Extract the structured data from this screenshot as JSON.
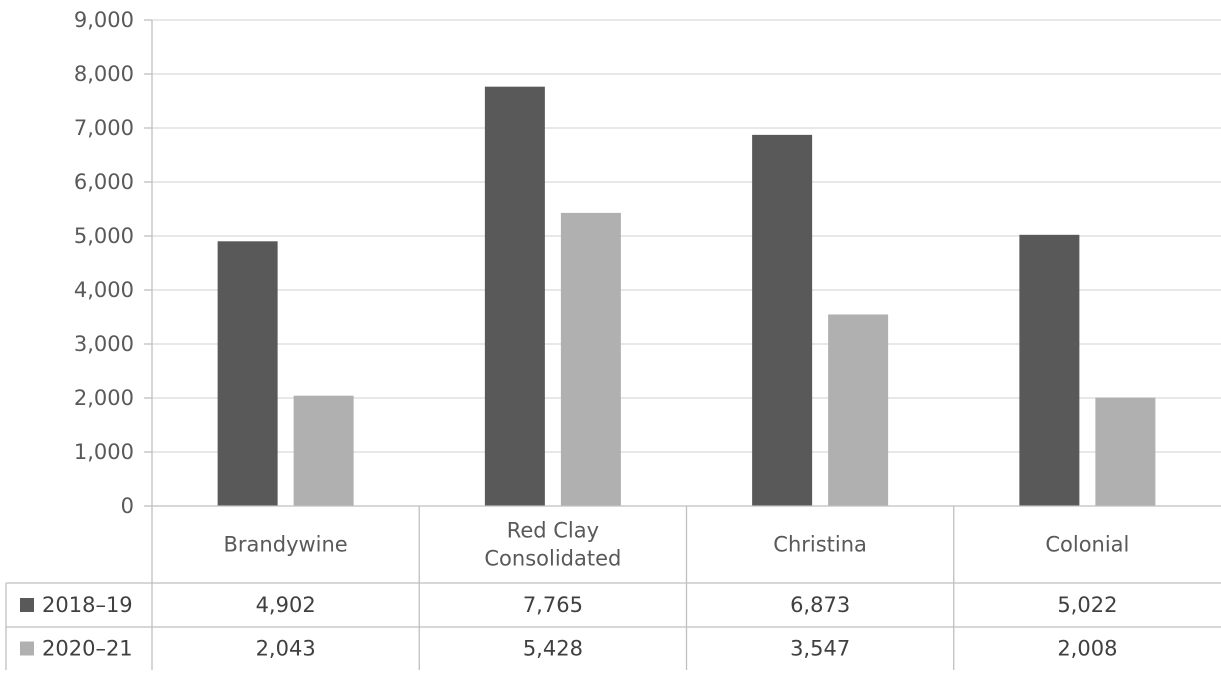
{
  "chart_data": {
    "type": "bar",
    "categories": [
      "Brandywine",
      "Red Clay Consolidated",
      "Christina",
      "Colonial"
    ],
    "category_lines": [
      [
        "Brandywine"
      ],
      [
        "Red Clay",
        "Consolidated"
      ],
      [
        "Christina"
      ],
      [
        "Colonial"
      ]
    ],
    "series": [
      {
        "name": "2018–19",
        "values": [
          4902,
          7765,
          6873,
          5022
        ],
        "labels": [
          "4,902",
          "7,765",
          "6,873",
          "5,022"
        ],
        "color": "#595959"
      },
      {
        "name": "2020–21",
        "values": [
          2043,
          5428,
          3547,
          2008
        ],
        "labels": [
          "2,043",
          "5,428",
          "3,547",
          "2,008"
        ],
        "color": "#b0b0b0"
      }
    ],
    "ylim": [
      0,
      9000
    ],
    "yticks": [
      "0",
      "1,000",
      "2,000",
      "3,000",
      "4,000",
      "5,000",
      "6,000",
      "7,000",
      "8,000",
      "9,000"
    ],
    "grid": true,
    "legend": "data table"
  }
}
